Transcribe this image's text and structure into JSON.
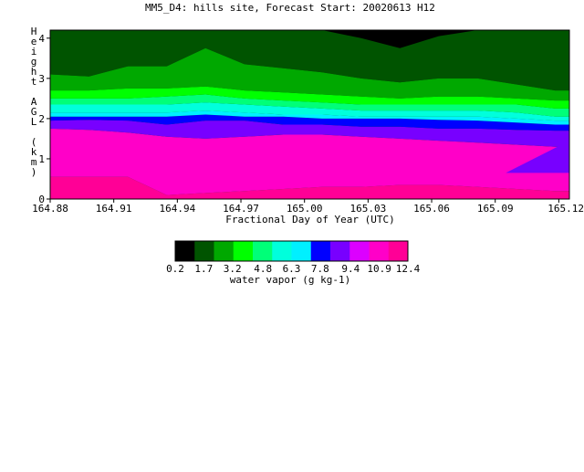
{
  "chart_data": {
    "type": "heatmap",
    "title": "MM5_D4: hills site,  Forecast Start: 20020613 H12",
    "xlabel": "Fractional Day of Year (UTC)",
    "ylabel": "Height AGL (km)",
    "xlim": [
      164.88,
      165.125
    ],
    "ylim": [
      0,
      4.2
    ],
    "x_ticks": [
      164.88,
      164.91,
      164.94,
      164.97,
      165.0,
      165.03,
      165.06,
      165.09,
      165.12
    ],
    "x_tick_labels": [
      "164.88",
      "164.91",
      "164.94",
      "164.97",
      "165.00",
      "165.03",
      "165.06",
      "165.09",
      "165.12"
    ],
    "y_ticks": [
      0,
      1,
      2,
      3,
      4
    ],
    "y_tick_labels": [
      "0",
      "1",
      "2",
      "3",
      "4"
    ],
    "x": [
      164.88,
      164.8983,
      164.9167,
      164.935,
      164.9533,
      164.9717,
      164.99,
      165.0083,
      165.0267,
      165.045,
      165.0633,
      165.0817,
      165.1,
      165.1183,
      165.125
    ],
    "contour_levels": [
      0.2,
      1.7,
      3.2,
      4.8,
      6.3,
      7.8,
      9.4,
      10.9,
      12.4
    ],
    "colorbar_labels": [
      "0.2",
      "1.7",
      "3.2",
      "4.8",
      "6.3",
      "7.8",
      "9.4",
      "10.9",
      "12.4"
    ],
    "colorbar_label": "water vapor (g kg-1)",
    "colorbar_colors": [
      "#000000",
      "#005400",
      "#00a800",
      "#00ff00",
      "#00ff78",
      "#00ffdc",
      "#00f0ff",
      "#0000ff",
      "#7800ff",
      "#dc00ff",
      "#ff00c8",
      "#ff0096"
    ],
    "bands": [
      {
        "color": "#ff0096",
        "lower": [
          0,
          0,
          0,
          0,
          0,
          0,
          0,
          0,
          0,
          0,
          0,
          0,
          0,
          0,
          0
        ],
        "upper": [
          0.55,
          0.55,
          0.55,
          0.1,
          0.15,
          0.2,
          0.25,
          0.3,
          0.3,
          0.35,
          0.35,
          0.3,
          0.25,
          0.2,
          0.2
        ]
      },
      {
        "color": "#ff00c8",
        "lower": [
          0.55,
          0.55,
          0.55,
          0.1,
          0.15,
          0.2,
          0.25,
          0.3,
          0.3,
          0.35,
          0.35,
          0.3,
          0.25,
          0.2,
          0.2
        ],
        "upper": [
          1.75,
          1.72,
          1.65,
          1.55,
          1.5,
          1.55,
          1.6,
          1.6,
          1.55,
          1.5,
          1.45,
          1.4,
          1.35,
          1.3,
          1.3
        ]
      },
      {
        "color": "#dc00ff",
        "lower": [
          1.75,
          1.72,
          1.65,
          1.55,
          1.5,
          1.55,
          1.6,
          1.6,
          1.55,
          1.5,
          1.45,
          1.4,
          1.35,
          1.3,
          1.3
        ],
        "upper": [
          1.75,
          1.72,
          1.65,
          1.55,
          1.5,
          1.55,
          1.6,
          1.6,
          1.55,
          1.5,
          1.45,
          1.4,
          1.35,
          1.3,
          1.3
        ]
      },
      {
        "color": "#7800ff",
        "lower": [
          1.75,
          1.72,
          1.65,
          1.55,
          1.5,
          1.55,
          1.6,
          1.6,
          1.55,
          1.5,
          1.45,
          1.4,
          1.35,
          1.3,
          1.3
        ],
        "upper": [
          1.95,
          1.97,
          1.95,
          1.85,
          1.95,
          1.95,
          1.85,
          1.85,
          1.8,
          1.8,
          1.75,
          1.75,
          1.72,
          1.7,
          1.7
        ]
      },
      {
        "color": "#0000ff",
        "lower": [
          1.95,
          1.97,
          1.95,
          1.85,
          1.95,
          1.95,
          1.85,
          1.85,
          1.8,
          1.8,
          1.75,
          1.75,
          1.72,
          1.7,
          1.7
        ],
        "upper": [
          2.05,
          2.05,
          2.05,
          2.05,
          2.1,
          2.05,
          2.05,
          2.0,
          2.0,
          2.0,
          1.97,
          1.95,
          1.9,
          1.85,
          1.85
        ]
      },
      {
        "color": "#00f0ff",
        "lower": [
          2.05,
          2.05,
          2.05,
          2.05,
          2.1,
          2.05,
          2.05,
          2.0,
          2.0,
          2.0,
          1.97,
          1.95,
          1.9,
          1.85,
          1.85
        ],
        "upper": [
          2.15,
          2.15,
          2.15,
          2.15,
          2.2,
          2.15,
          2.1,
          2.1,
          2.05,
          2.05,
          2.05,
          2.05,
          2.0,
          1.95,
          1.95
        ]
      },
      {
        "color": "#00ffdc",
        "lower": [
          2.15,
          2.15,
          2.15,
          2.15,
          2.2,
          2.15,
          2.1,
          2.1,
          2.05,
          2.05,
          2.05,
          2.05,
          2.0,
          1.95,
          1.95
        ],
        "upper": [
          2.35,
          2.35,
          2.35,
          2.35,
          2.4,
          2.35,
          2.3,
          2.25,
          2.2,
          2.2,
          2.2,
          2.2,
          2.15,
          2.05,
          2.05
        ]
      },
      {
        "color": "#00ff78",
        "lower": [
          2.35,
          2.35,
          2.35,
          2.35,
          2.4,
          2.35,
          2.3,
          2.25,
          2.2,
          2.2,
          2.2,
          2.2,
          2.15,
          2.05,
          2.05
        ],
        "upper": [
          2.5,
          2.5,
          2.5,
          2.55,
          2.6,
          2.5,
          2.45,
          2.4,
          2.35,
          2.35,
          2.35,
          2.35,
          2.35,
          2.25,
          2.25
        ]
      },
      {
        "color": "#00ff00",
        "lower": [
          2.5,
          2.5,
          2.5,
          2.55,
          2.6,
          2.5,
          2.45,
          2.4,
          2.35,
          2.35,
          2.35,
          2.35,
          2.35,
          2.25,
          2.25
        ],
        "upper": [
          2.7,
          2.7,
          2.75,
          2.75,
          2.8,
          2.7,
          2.65,
          2.6,
          2.55,
          2.5,
          2.55,
          2.55,
          2.5,
          2.45,
          2.45
        ]
      },
      {
        "color": "#00a800",
        "lower": [
          2.7,
          2.7,
          2.75,
          2.75,
          2.8,
          2.7,
          2.65,
          2.6,
          2.55,
          2.5,
          2.55,
          2.55,
          2.5,
          2.45,
          2.45
        ],
        "upper": [
          3.1,
          3.05,
          3.3,
          3.3,
          3.75,
          3.35,
          3.25,
          3.15,
          3.0,
          2.9,
          3.0,
          3.0,
          2.85,
          2.7,
          2.7
        ]
      },
      {
        "color": "#005400",
        "lower": [
          3.1,
          3.05,
          3.3,
          3.3,
          3.75,
          3.35,
          3.25,
          3.15,
          3.0,
          2.9,
          3.0,
          3.0,
          2.85,
          2.7,
          2.7
        ],
        "upper": [
          4.2,
          4.2,
          4.2,
          4.2,
          4.2,
          4.2,
          4.2,
          4.2,
          4.2,
          4.2,
          4.2,
          4.2,
          4.2,
          4.2,
          4.2
        ]
      },
      {
        "color": "#000000",
        "lower": [
          4.2,
          4.2,
          4.2,
          4.2,
          4.2,
          4.2,
          4.2,
          4.2,
          4.0,
          3.75,
          4.05,
          4.2,
          4.2,
          4.2,
          4.2
        ],
        "upper": [
          4.2,
          4.2,
          4.2,
          4.2,
          4.2,
          4.2,
          4.2,
          4.2,
          4.2,
          4.2,
          4.2,
          4.2,
          4.2,
          4.2,
          4.2
        ]
      }
    ],
    "intrusion": {
      "color": "#7800ff",
      "x": [
        165.095,
        165.125,
        165.125
      ],
      "y": [
        0.65,
        1.45,
        0.65
      ]
    }
  }
}
